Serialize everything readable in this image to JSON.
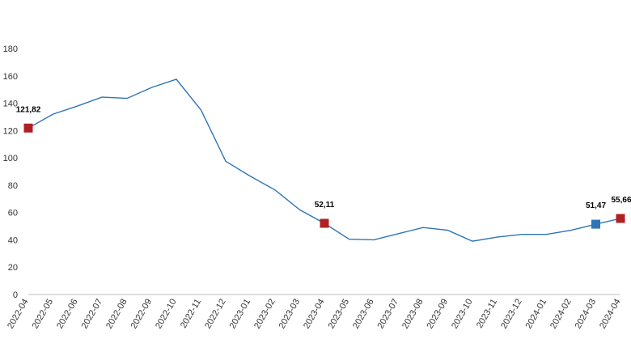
{
  "chart_data": {
    "type": "line",
    "title": "",
    "xlabel": "",
    "ylabel": "",
    "ylim": [
      0,
      180
    ],
    "yticks": [
      0,
      20,
      40,
      60,
      80,
      100,
      120,
      140,
      160,
      180
    ],
    "grid": false,
    "legend": "none",
    "categories": [
      "2022-04",
      "2022-05",
      "2022-06",
      "2022-07",
      "2022-08",
      "2022-09",
      "2022-10",
      "2022-11",
      "2022-12",
      "2023-01",
      "2023-02",
      "2023-03",
      "2023-04",
      "2023-05",
      "2023-06",
      "2023-07",
      "2023-08",
      "2023-09",
      "2023-10",
      "2023-11",
      "2023-12",
      "2024-01",
      "2024-02",
      "2024-03",
      "2024-04"
    ],
    "series": [
      {
        "name": "",
        "color": "#2e75b6",
        "values": [
          121.82,
          132,
          138,
          144.5,
          143.5,
          151.5,
          157.5,
          135,
          97.5,
          86.5,
          76.5,
          62,
          52.11,
          40.5,
          40,
          44.5,
          49,
          47,
          39,
          42,
          44,
          44,
          47,
          51.47,
          55.66
        ]
      }
    ],
    "markers": [
      {
        "index": 0,
        "label": "121,82",
        "color": "#b01f24"
      },
      {
        "index": 12,
        "label": "52,11",
        "color": "#b01f24"
      },
      {
        "index": 23,
        "label": "51,47",
        "color": "#2e75b6"
      },
      {
        "index": 24,
        "label": "55,66",
        "color": "#b01f24"
      }
    ],
    "colors": {
      "line": "#2e75b6",
      "axis": "#bfbfbf",
      "text": "#333333"
    }
  }
}
